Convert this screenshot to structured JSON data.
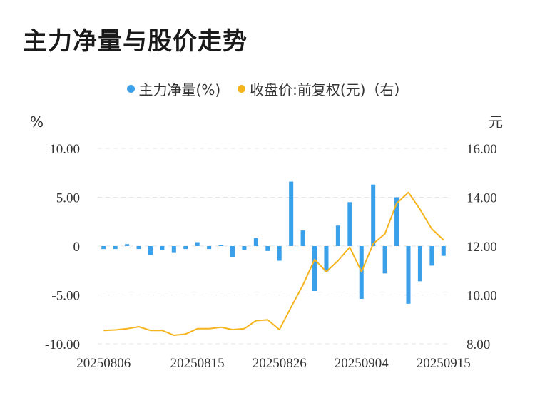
{
  "title": "主力净量与股价走势",
  "legend": {
    "flow_label": "主力净量(%)",
    "price_label": "收盘价:前复权(元)（右）"
  },
  "colors": {
    "flow": "#3aa0ea",
    "price": "#f5b41e",
    "grid": "#e4e4e4",
    "text": "#333333"
  },
  "chart_data": {
    "type": "bar+line",
    "left_axis": {
      "unit": "%",
      "ticks": [
        "10.00",
        "5.00",
        "0",
        "-5.00",
        "-10.00"
      ],
      "range": [
        -10,
        10
      ]
    },
    "right_axis": {
      "unit": "元",
      "ticks": [
        "16.00",
        "14.00",
        "12.00",
        "10.00",
        "8.00"
      ],
      "range": [
        8,
        16
      ]
    },
    "x_tick_labels": [
      "20250806",
      "20250815",
      "20250826",
      "20250904",
      "20250915"
    ],
    "x_tick_index": [
      0,
      8,
      15,
      22,
      29
    ],
    "series": [
      {
        "name": "主力净量(%)",
        "type": "bar",
        "values": [
          -0.3,
          -0.3,
          0.2,
          -0.3,
          -0.9,
          -0.4,
          -0.7,
          -0.3,
          0.4,
          -0.3,
          0.0,
          -1.1,
          -0.4,
          0.8,
          -0.5,
          -1.5,
          6.6,
          1.6,
          -4.6,
          -2.6,
          2.1,
          4.5,
          -5.4,
          6.3,
          -2.8,
          5.0,
          -5.9,
          -3.6,
          -2.0,
          -1.0
        ]
      },
      {
        "name": "收盘价:前复权(元)（右）",
        "type": "line",
        "values": [
          8.55,
          8.57,
          8.62,
          8.7,
          8.55,
          8.55,
          8.35,
          8.4,
          8.62,
          8.62,
          8.68,
          8.58,
          8.62,
          8.95,
          8.98,
          8.58,
          9.5,
          10.4,
          11.45,
          10.95,
          11.4,
          11.95,
          10.95,
          12.1,
          12.5,
          13.75,
          14.2,
          13.5,
          12.7,
          12.25
        ]
      }
    ]
  }
}
